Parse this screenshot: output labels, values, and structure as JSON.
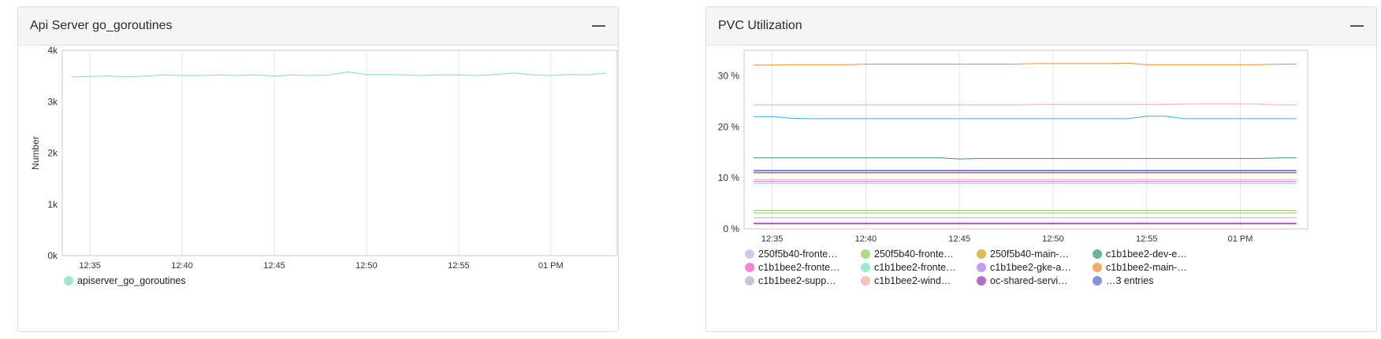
{
  "panels": [
    {
      "title": "Api Server go_goroutines",
      "chart_data": {
        "type": "line",
        "x": [
          "12:34",
          "12:35",
          "12:36",
          "12:37",
          "12:38",
          "12:39",
          "12:40",
          "12:41",
          "12:42",
          "12:43",
          "12:44",
          "12:45",
          "12:46",
          "12:47",
          "12:48",
          "12:49",
          "12:50",
          "12:51",
          "12:52",
          "12:53",
          "12:54",
          "12:55",
          "12:56",
          "12:57",
          "12:58",
          "12:59",
          "13:00",
          "13:01",
          "13:02",
          "13:03"
        ],
        "x_ticks": [
          "12:35",
          "12:40",
          "12:45",
          "12:50",
          "12:55",
          "01 PM"
        ],
        "ylabel": "Number",
        "ylim": [
          0,
          4000
        ],
        "y_ticks": [
          "0k",
          "1k",
          "2k",
          "3k",
          "4k"
        ],
        "grid": true,
        "legend": "bottom",
        "series": [
          {
            "name": "apiserver_go_goroutines",
            "color": "#7ee0b8",
            "values": [
              3480,
              3490,
              3500,
              3480,
              3500,
              3520,
              3510,
              3510,
              3520,
              3510,
              3520,
              3500,
              3520,
              3510,
              3520,
              3580,
              3530,
              3530,
              3520,
              3510,
              3520,
              3520,
              3510,
              3530,
              3560,
              3520,
              3510,
              3530,
              3520,
              3560
            ]
          }
        ]
      }
    },
    {
      "title": "PVC Utilization",
      "chart_data": {
        "type": "line",
        "x": [
          "12:34",
          "12:35",
          "12:36",
          "12:37",
          "12:38",
          "12:39",
          "12:40",
          "12:41",
          "12:42",
          "12:43",
          "12:44",
          "12:45",
          "12:46",
          "12:47",
          "12:48",
          "12:49",
          "12:50",
          "12:51",
          "12:52",
          "12:53",
          "12:54",
          "12:55",
          "12:56",
          "12:57",
          "12:58",
          "12:59",
          "13:00",
          "13:01",
          "13:02",
          "13:03"
        ],
        "x_ticks": [
          "12:35",
          "12:40",
          "12:45",
          "12:50",
          "12:55",
          "01 PM"
        ],
        "ylim": [
          0,
          35
        ],
        "y_ticks": [
          "0 %",
          "10 %",
          "20 %",
          "30 %"
        ],
        "grid": true,
        "legend": "bottom",
        "series": [
          {
            "name": "250f5b40-fronte…",
            "color": "#c7b2f0",
            "values": [
              9.7,
              9.7,
              9.7,
              9.7,
              9.7,
              9.7,
              9.7,
              9.7,
              9.7,
              9.7,
              9.7,
              9.7,
              9.7,
              9.7,
              9.7,
              9.7,
              9.7,
              9.7,
              9.7,
              9.7,
              9.7,
              9.7,
              9.7,
              9.7,
              9.7,
              9.7,
              9.7,
              9.7,
              9.7,
              9.7
            ]
          },
          {
            "name": "250f5b40-fronte…",
            "color": "#8bd15a",
            "values": [
              3.1,
              3.1,
              3.1,
              3.1,
              3.1,
              3.1,
              3.1,
              3.1,
              3.1,
              3.1,
              3.1,
              3.1,
              3.1,
              3.1,
              3.1,
              3.1,
              3.1,
              3.1,
              3.1,
              3.1,
              3.1,
              3.1,
              3.1,
              3.1,
              3.1,
              3.1,
              3.1,
              3.1,
              3.1,
              3.1
            ]
          },
          {
            "name": "250f5b40-main-…",
            "color": "#d4a21f",
            "values": [
              3.6,
              3.6,
              3.6,
              3.6,
              3.6,
              3.6,
              3.6,
              3.6,
              3.6,
              3.6,
              3.6,
              3.6,
              3.6,
              3.6,
              3.6,
              3.6,
              3.6,
              3.6,
              3.6,
              3.6,
              3.6,
              3.6,
              3.6,
              3.6,
              3.6,
              3.6,
              3.6,
              3.6,
              3.6,
              3.6
            ]
          },
          {
            "name": "c1b1bee2-dev-e…",
            "color": "#2e9e78",
            "values": [
              13.9,
              13.9,
              13.9,
              13.9,
              13.9,
              13.9,
              13.9,
              13.9,
              13.9,
              13.9,
              13.9,
              13.7,
              13.8,
              13.8,
              13.8,
              13.8,
              13.8,
              13.8,
              13.8,
              13.8,
              13.8,
              13.8,
              13.8,
              13.8,
              13.8,
              13.8,
              13.8,
              13.8,
              13.9,
              13.9
            ]
          },
          {
            "name": "c1b1bee2-fronte…",
            "color": "#f25ac8",
            "values": [
              9.3,
              9.3,
              9.3,
              9.3,
              9.3,
              9.3,
              9.3,
              9.3,
              9.3,
              9.3,
              9.3,
              9.3,
              9.3,
              9.3,
              9.3,
              9.3,
              9.3,
              9.3,
              9.3,
              9.3,
              9.3,
              9.3,
              9.3,
              9.3,
              9.3,
              9.3,
              9.3,
              9.3,
              9.3,
              9.3
            ]
          },
          {
            "name": "c1b1bee2-fronte…",
            "color": "#7fe0c4",
            "values": [
              8.9,
              8.9,
              8.9,
              8.9,
              8.9,
              8.9,
              8.9,
              8.9,
              8.9,
              8.9,
              8.9,
              8.9,
              8.9,
              8.9,
              8.9,
              8.9,
              8.9,
              8.9,
              8.9,
              8.9,
              8.9,
              8.9,
              8.9,
              8.9,
              8.9,
              8.9,
              8.9,
              8.9,
              8.9,
              8.9
            ]
          },
          {
            "name": "c1b1bee2-gke-a…",
            "color": "#a880ee",
            "values": [
              1.2,
              1.2,
              1.2,
              1.2,
              1.2,
              1.2,
              1.2,
              1.2,
              1.2,
              1.2,
              1.2,
              1.2,
              1.2,
              1.2,
              1.2,
              1.2,
              1.2,
              1.2,
              1.2,
              1.2,
              1.2,
              1.2,
              1.2,
              1.2,
              1.2,
              1.2,
              1.2,
              1.2,
              1.2,
              1.2
            ]
          },
          {
            "name": "c1b1bee2-main-…",
            "color": "#f58a3c",
            "values": [
              32.1,
              32.1,
              32.2,
              32.2,
              32.2,
              32.2,
              32.3,
              32.3,
              32.3,
              32.3,
              32.3,
              32.3,
              32.3,
              32.3,
              32.3,
              32.4,
              32.4,
              32.4,
              32.4,
              32.4,
              32.5,
              32.2,
              32.2,
              32.2,
              32.2,
              32.2,
              32.2,
              32.2,
              32.3,
              32.3
            ]
          },
          {
            "name": "c1b1bee2-supp…",
            "color": "#b0b6c0",
            "values": [
              2.2,
              2.2,
              2.2,
              2.2,
              2.2,
              2.2,
              2.2,
              2.2,
              2.2,
              2.2,
              2.2,
              2.2,
              2.2,
              2.2,
              2.2,
              2.2,
              2.2,
              2.2,
              2.2,
              2.2,
              2.2,
              2.2,
              2.2,
              2.2,
              2.2,
              2.2,
              2.2,
              2.2,
              2.2,
              2.2
            ]
          },
          {
            "name": "c1b1bee2-wind…",
            "color": "#f6aaa4",
            "values": [
              24.3,
              24.3,
              24.3,
              24.3,
              24.3,
              24.3,
              24.3,
              24.3,
              24.3,
              24.3,
              24.3,
              24.3,
              24.3,
              24.3,
              24.3,
              24.4,
              24.4,
              24.4,
              24.4,
              24.4,
              24.4,
              24.4,
              24.4,
              24.5,
              24.5,
              24.5,
              24.5,
              24.5,
              24.3,
              24.3
            ]
          },
          {
            "name": "oc-shared-servi…",
            "color": "#9a3eb5",
            "values": [
              1.0,
              1.0,
              1.0,
              1.0,
              1.0,
              1.0,
              1.0,
              1.0,
              1.0,
              1.0,
              1.0,
              1.0,
              1.0,
              1.0,
              1.0,
              1.0,
              1.0,
              1.0,
              1.0,
              1.0,
              1.0,
              1.0,
              1.0,
              1.0,
              1.0,
              1.0,
              1.0,
              1.0,
              1.0,
              1.0
            ]
          },
          {
            "name": "…3 entries",
            "color": "#5a6fd0",
            "values": [
              11.5,
              11.5,
              11.5,
              11.5,
              11.5,
              11.5,
              11.5,
              11.5,
              11.5,
              11.5,
              11.5,
              11.5,
              11.5,
              11.5,
              11.5,
              11.5,
              11.5,
              11.5,
              11.5,
              11.5,
              11.5,
              11.5,
              11.5,
              11.5,
              11.5,
              11.5,
              11.5,
              11.5,
              11.5,
              11.5
            ]
          },
          {
            "color": "#42a5f5",
            "values": [
              22.0,
              22.0,
              21.7,
              21.6,
              21.6,
              21.6,
              21.6,
              21.6,
              21.6,
              21.6,
              21.6,
              21.6,
              21.6,
              21.6,
              21.6,
              21.6,
              21.6,
              21.6,
              21.6,
              21.6,
              21.6,
              22.1,
              22.1,
              21.6,
              21.6,
              21.6,
              21.6,
              21.6,
              21.6,
              21.6
            ]
          },
          {
            "color": "#b07050",
            "values": [
              11.3,
              11.3,
              11.3,
              11.3,
              11.3,
              11.3,
              11.3,
              11.3,
              11.3,
              11.3,
              11.3,
              11.3,
              11.3,
              11.3,
              11.3,
              11.3,
              11.3,
              11.3,
              11.3,
              11.3,
              11.3,
              11.3,
              11.3,
              11.3,
              11.3,
              11.3,
              11.3,
              11.3,
              11.3,
              11.3
            ]
          },
          {
            "color": "#555555",
            "values": [
              11.0,
              11.0,
              11.0,
              11.0,
              11.0,
              11.0,
              11.0,
              11.0,
              11.0,
              11.0,
              11.0,
              11.0,
              11.0,
              11.0,
              11.0,
              11.0,
              11.0,
              11.0,
              11.0,
              11.0,
              11.0,
              11.0,
              11.0,
              11.0,
              11.0,
              11.0,
              11.0,
              11.0,
              11.0,
              11.0
            ]
          }
        ]
      }
    }
  ],
  "icons": {
    "collapse": "minus-icon"
  }
}
